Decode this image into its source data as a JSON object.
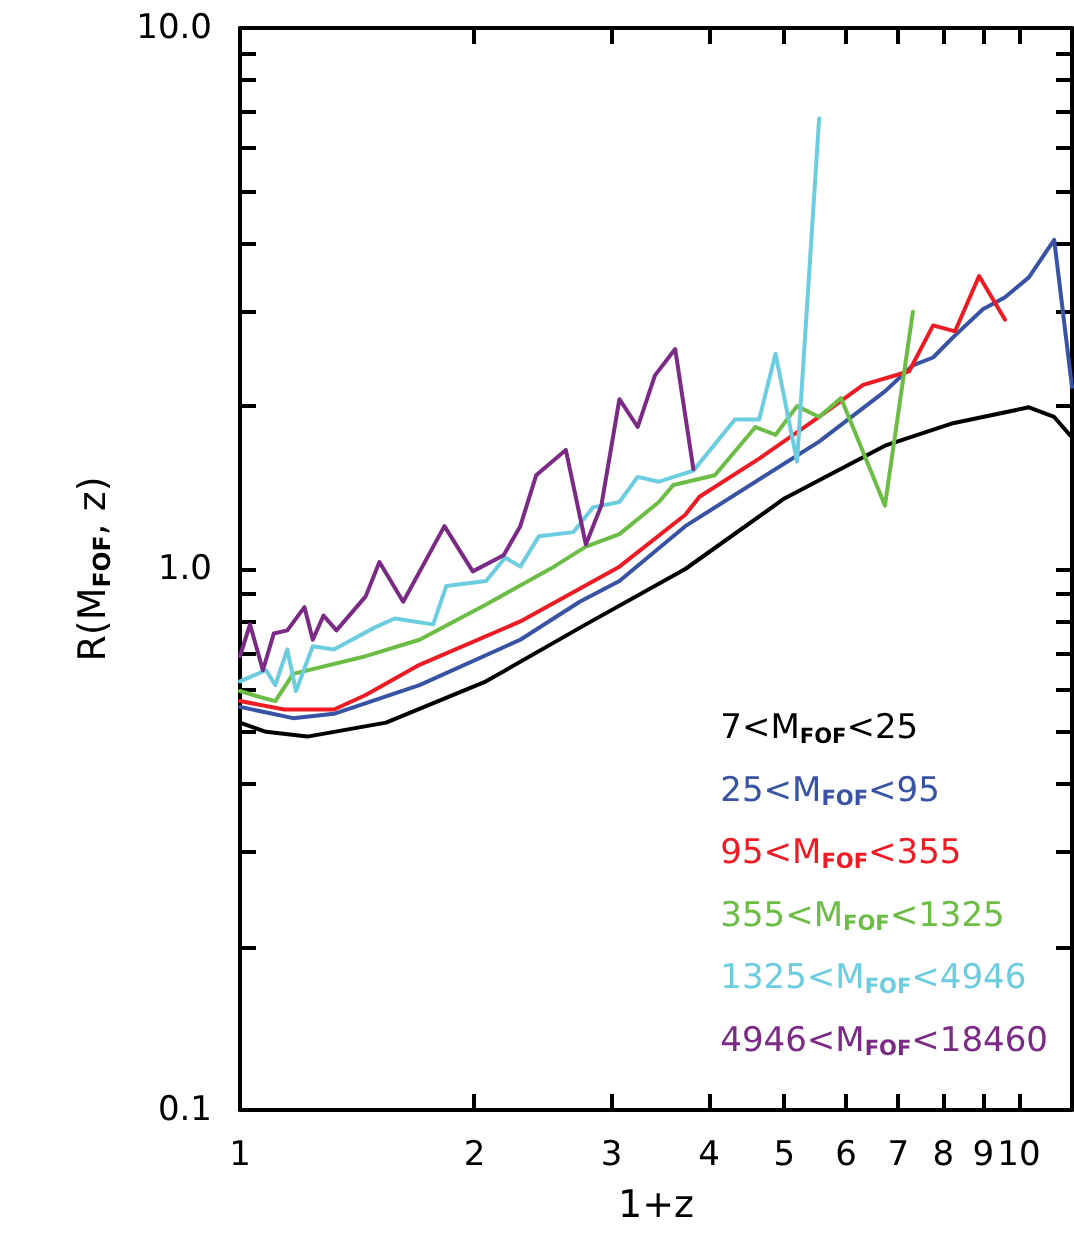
{
  "chart_data": {
    "type": "line",
    "xlabel": "1+z",
    "ylabel": "R(M$_{FOF}$, z)",
    "log": "xy",
    "grid": false,
    "legend": "bottom right",
    "marker": "none",
    "xlim": [
      1,
      11.7
    ],
    "ylim": [
      0.1,
      10
    ],
    "xticks": [
      1,
      2,
      3,
      4,
      5,
      6,
      7,
      8,
      9,
      10
    ],
    "yticks": [
      {
        "value": 0.1,
        "label": "0.1"
      },
      {
        "value": 0.2,
        "label": null
      },
      {
        "value": 0.3,
        "label": null
      },
      {
        "value": 0.4,
        "label": null
      },
      {
        "value": 0.5,
        "label": null
      },
      {
        "value": 0.6,
        "label": null
      },
      {
        "value": 0.7,
        "label": null
      },
      {
        "value": 0.8,
        "label": null
      },
      {
        "value": 0.9,
        "label": null
      },
      {
        "value": 1,
        "label": "1.0"
      },
      {
        "value": 2,
        "label": null
      },
      {
        "value": 3,
        "label": null
      },
      {
        "value": 4,
        "label": null
      },
      {
        "value": 5,
        "label": null
      },
      {
        "value": 6,
        "label": null
      },
      {
        "value": 7,
        "label": null
      },
      {
        "value": 8,
        "label": null
      },
      {
        "value": 9,
        "label": null
      },
      {
        "value": 10,
        "label": "10.0"
      }
    ],
    "series": [
      {
        "name": "7<M$_{FOF}$<25",
        "color": "#000000",
        "x": [
          1,
          1.08,
          1.22,
          1.54,
          2.07,
          2.78,
          3.73,
          5.0,
          6.73,
          8.23,
          10.3,
          11.1,
          11.7
        ],
        "values": [
          0.52,
          0.5,
          0.49,
          0.52,
          0.62,
          0.79,
          1.0,
          1.35,
          1.69,
          1.86,
          1.99,
          1.91,
          1.75
        ]
      },
      {
        "name": "25<M$_{FOF}$<95",
        "color": "#3953a4",
        "x": [
          1,
          1.17,
          1.32,
          1.7,
          2.29,
          2.73,
          3.07,
          3.73,
          5.54,
          6.73,
          7.31,
          7.76,
          8.23,
          8.99,
          9.6,
          10.3,
          11.1,
          11.7
        ],
        "values": [
          0.556,
          0.53,
          0.54,
          0.61,
          0.74,
          0.87,
          0.95,
          1.2,
          1.72,
          2.13,
          2.38,
          2.46,
          2.68,
          3.02,
          3.18,
          3.46,
          4.06,
          2.17
        ]
      },
      {
        "name": "95<M$_{FOF}$<355",
        "color": "#ed1c24",
        "x": [
          1,
          1.14,
          1.32,
          1.45,
          1.7,
          2.29,
          3.07,
          3.73,
          3.89,
          4.64,
          5.54,
          6.31,
          7.23,
          7.76,
          8.28,
          8.89,
          9.6
        ],
        "values": [
          0.57,
          0.55,
          0.55,
          0.585,
          0.665,
          0.8,
          1.01,
          1.26,
          1.36,
          1.6,
          1.91,
          2.19,
          2.32,
          2.82,
          2.75,
          3.48,
          2.89
        ]
      },
      {
        "name": "355<M$_{FOF}$<1325",
        "color": "#6cbd45",
        "x": [
          1,
          1.06,
          1.11,
          1.17,
          1.45,
          1.7,
          2.07,
          2.53,
          2.78,
          3.07,
          3.45,
          3.6,
          4.07,
          4.59,
          4.87,
          5.19,
          5.54,
          5.91,
          6.73,
          7.31
        ],
        "values": [
          0.595,
          0.58,
          0.57,
          0.64,
          0.69,
          0.74,
          0.86,
          1.01,
          1.1,
          1.16,
          1.33,
          1.43,
          1.49,
          1.83,
          1.77,
          2.0,
          1.91,
          2.07,
          1.31,
          2.99
        ]
      },
      {
        "name": "1325<M$_{FOF}$<4946",
        "color": "#6dcde0",
        "x": [
          1,
          1.08,
          1.11,
          1.15,
          1.18,
          1.24,
          1.32,
          1.49,
          1.58,
          1.77,
          1.84,
          2.07,
          2.19,
          2.29,
          2.42,
          2.68,
          2.84,
          3.07,
          3.24,
          3.45,
          3.82,
          4.32,
          4.64,
          4.87,
          5.19,
          5.54
        ],
        "values": [
          0.62,
          0.65,
          0.61,
          0.71,
          0.595,
          0.72,
          0.71,
          0.78,
          0.81,
          0.79,
          0.93,
          0.95,
          1.05,
          1.01,
          1.15,
          1.17,
          1.3,
          1.33,
          1.48,
          1.45,
          1.52,
          1.89,
          1.89,
          2.5,
          1.58,
          6.8
        ]
      },
      {
        "name": "4946<M$_{FOF}$<18460",
        "color": "#7b2a86",
        "x": [
          1,
          1.03,
          1.07,
          1.105,
          1.15,
          1.21,
          1.24,
          1.28,
          1.33,
          1.45,
          1.51,
          1.62,
          1.83,
          1.99,
          2.18,
          2.29,
          2.4,
          2.62,
          2.78,
          2.91,
          3.07,
          3.24,
          3.41,
          3.62,
          3.82
        ],
        "values": [
          0.69,
          0.79,
          0.65,
          0.76,
          0.77,
          0.85,
          0.74,
          0.82,
          0.77,
          0.89,
          1.03,
          0.87,
          1.2,
          0.99,
          1.06,
          1.2,
          1.49,
          1.66,
          1.11,
          1.31,
          2.06,
          1.83,
          2.28,
          2.55,
          1.53
        ]
      }
    ]
  }
}
